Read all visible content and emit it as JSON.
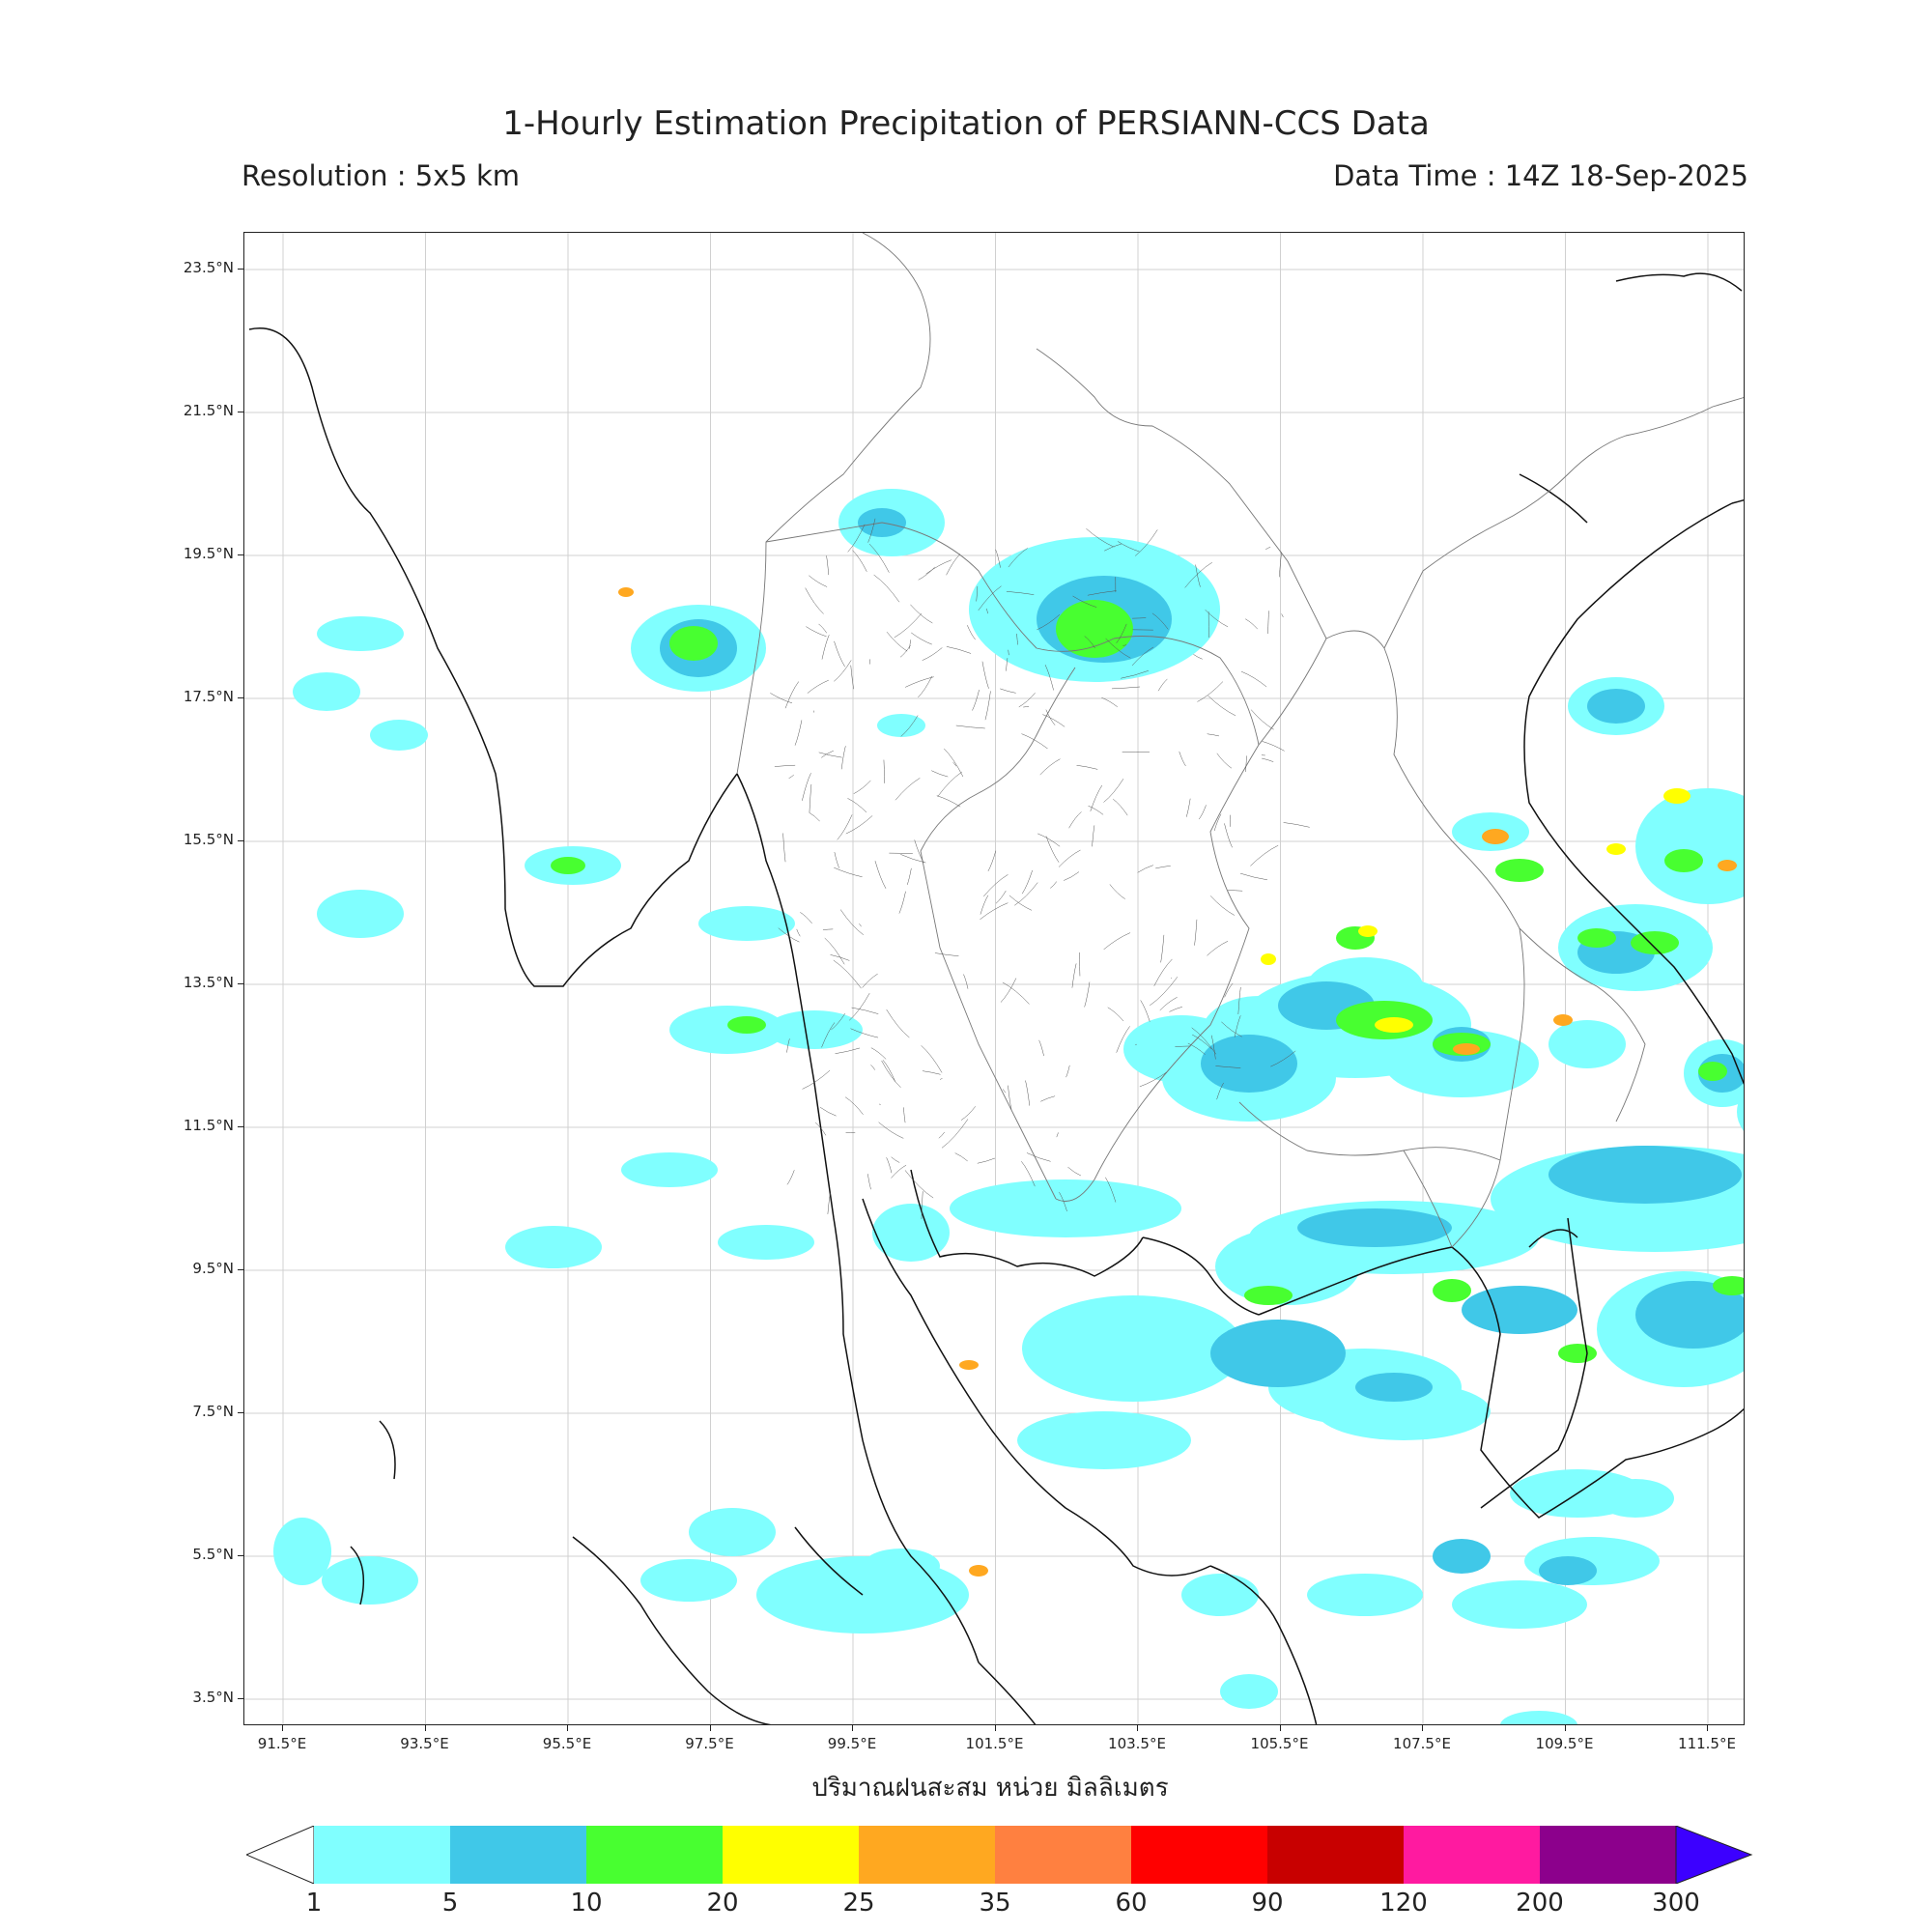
{
  "header": {
    "title": "1-Hourly Estimation Precipitation of PERSIANN-CCS Data",
    "resolution": "Resolution : 5x5 km",
    "data_time": "Data Time : 14Z 18-Sep-2025"
  },
  "map": {
    "lat_labels": [
      "23.5°N",
      "21.5°N",
      "19.5°N",
      "17.5°N",
      "15.5°N",
      "13.5°N",
      "11.5°N",
      "9.5°N",
      "7.5°N",
      "5.5°N",
      "3.5°N"
    ],
    "lon_labels": [
      "91.5°E",
      "93.5°E",
      "95.5°E",
      "97.5°E",
      "99.5°E",
      "101.5°E",
      "103.5°E",
      "105.5°E",
      "107.5°E",
      "109.5°E",
      "111.5°E"
    ],
    "xlabel": "ปริมาณฝนสะสม หน่วย มิลลิเมตร"
  },
  "colorbar": {
    "colors": [
      "#80ffff",
      "#40c8e8",
      "#48ff30",
      "#ffff00",
      "#ffa820",
      "#ff8040",
      "#ff0000",
      "#c80000",
      "#ff1aa0",
      "#8c008c",
      "#3c00ff"
    ],
    "tick_labels": [
      "1",
      "5",
      "10",
      "20",
      "25",
      "35",
      "60",
      "90",
      "120",
      "200",
      "300"
    ]
  }
}
